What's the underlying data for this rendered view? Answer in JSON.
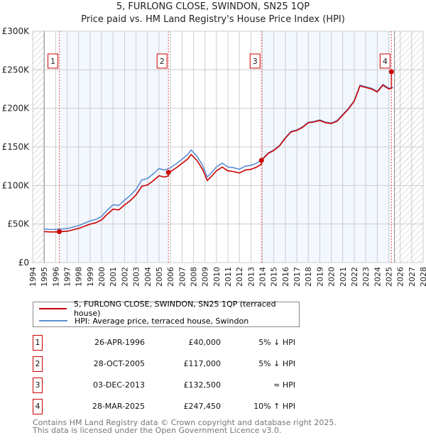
{
  "title": "5, FURLONG CLOSE, SWINDON, SN25 1QP",
  "subtitle": "Price paid vs. HM Land Registry's House Price Index (HPI)",
  "chart_data": {
    "type": "line",
    "xlim": [
      1994,
      2028
    ],
    "ylim": [
      0,
      300000
    ],
    "yticks": [
      0,
      50000,
      100000,
      150000,
      200000,
      250000,
      300000
    ],
    "ytick_labels": [
      "£0",
      "£50K",
      "£100K",
      "£150K",
      "£200K",
      "£250K",
      "£300K"
    ],
    "xticks": [
      1994,
      1995,
      1996,
      1997,
      1998,
      1999,
      2000,
      2001,
      2002,
      2003,
      2004,
      2005,
      2006,
      2007,
      2008,
      2009,
      2010,
      2011,
      2012,
      2013,
      2014,
      2015,
      2016,
      2017,
      2018,
      2019,
      2020,
      2021,
      2022,
      2023,
      2024,
      2025,
      2026,
      2027,
      2028
    ],
    "data_start": 1995,
    "data_end": 2025.5,
    "hpi": {
      "name": "HPI: Average price, terraced house, Swindon",
      "color": "#5b8fd4",
      "x": [
        1995,
        1995.5,
        1996,
        1996.5,
        1997,
        1997.5,
        1998,
        1998.5,
        1999,
        1999.5,
        2000,
        2000.5,
        2001,
        2001.5,
        2002,
        2002.5,
        2003,
        2003.5,
        2004,
        2004.5,
        2005,
        2005.5,
        2006,
        2006.5,
        2007,
        2007.5,
        2007.8,
        2008.3,
        2008.8,
        2009.2,
        2009.6,
        2010,
        2010.5,
        2011,
        2011.5,
        2012,
        2012.5,
        2013,
        2013.5,
        2013.92,
        2014.5,
        2015,
        2015.5,
        2016,
        2016.5,
        2017,
        2017.5,
        2018,
        2018.5,
        2019,
        2019.5,
        2020,
        2020.5,
        2021,
        2021.5,
        2022,
        2022.5,
        2023,
        2023.5,
        2024,
        2024.5,
        2025,
        2025.4
      ],
      "y": [
        43500,
        43000,
        43000,
        43500,
        44000,
        46000,
        48000,
        51000,
        54000,
        56000,
        60000,
        68000,
        75000,
        74000,
        81000,
        87000,
        95000,
        107000,
        109000,
        115000,
        122000,
        120000,
        123000,
        128000,
        134000,
        140000,
        146000,
        138000,
        126000,
        111000,
        117000,
        124000,
        129000,
        124000,
        123000,
        121000,
        125000,
        126000,
        129000,
        133000,
        142000,
        146000,
        152000,
        162000,
        170000,
        172000,
        176000,
        182000,
        183000,
        185000,
        182000,
        181000,
        184000,
        192000,
        200000,
        210000,
        230000,
        228000,
        226000,
        222000,
        231000,
        226000,
        227000
      ]
    },
    "price": {
      "name": "5, FURLONG CLOSE, SWINDON, SN25 1QP (terraced house)",
      "color": "#cc0000"
    },
    "legend_position": "below",
    "sales": [
      {
        "n": "1",
        "x": 1996.32,
        "date": "26-APR-1996",
        "price": 40000,
        "price_label": "£40,000",
        "hpi": "5% ↓ HPI"
      },
      {
        "n": "2",
        "x": 2005.82,
        "date": "28-OCT-2005",
        "price": 117000,
        "price_label": "£117,000",
        "hpi": "5% ↓ HPI"
      },
      {
        "n": "3",
        "x": 2013.92,
        "date": "03-DEC-2013",
        "price": 132500,
        "price_label": "£132,500",
        "hpi": "≈ HPI"
      },
      {
        "n": "4",
        "x": 2025.24,
        "date": "28-MAR-2025",
        "price": 247450,
        "price_label": "£247,450",
        "hpi": "10% ↑ HPI"
      }
    ]
  },
  "footer": [
    "Contains HM Land Registry data © Crown copyright and database right 2025.",
    "This data is licensed under the Open Government Licence v3.0."
  ]
}
